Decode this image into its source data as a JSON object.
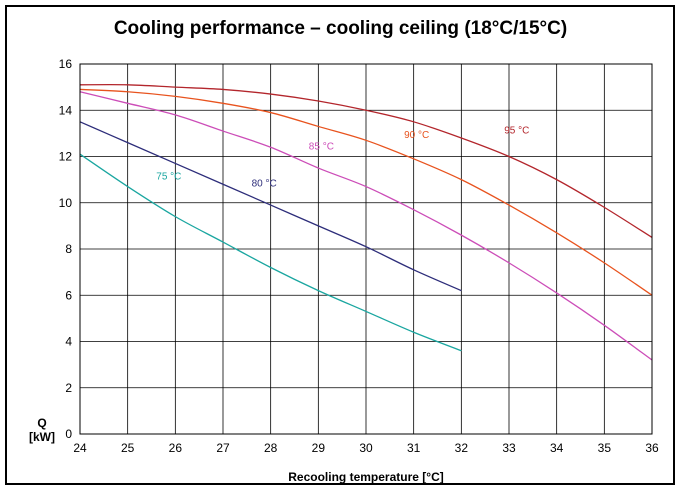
{
  "chart_data": {
    "type": "line",
    "title": "Cooling performance – cooling ceiling (18°C/15°C)",
    "xlabel": "Recooling temperature [°C]",
    "ylabel_top": "Q",
    "ylabel_bottom": "[kW]",
    "xlim": [
      24,
      36
    ],
    "ylim": [
      0,
      16
    ],
    "x_ticks": [
      "24",
      "25",
      "26",
      "27",
      "28",
      "29",
      "30",
      "31",
      "32",
      "33",
      "34",
      "35",
      "36"
    ],
    "y_ticks": [
      "0",
      "2",
      "4",
      "6",
      "8",
      "10",
      "12",
      "14",
      "16"
    ],
    "grid": true,
    "series": [
      {
        "name": "75 °C",
        "color": "#1aa6a0",
        "x": [
          24,
          25,
          26,
          27,
          28,
          29,
          30,
          31,
          32
        ],
        "y": [
          12.1,
          10.7,
          9.4,
          8.3,
          7.2,
          6.2,
          5.3,
          4.4,
          3.6
        ],
        "label_at": [
          25.6,
          11.0
        ]
      },
      {
        "name": "80 °C",
        "color": "#2d2d7a",
        "x": [
          24,
          25,
          26,
          27,
          28,
          29,
          30,
          31,
          32
        ],
        "y": [
          13.5,
          12.6,
          11.7,
          10.8,
          9.9,
          9.0,
          8.1,
          7.1,
          6.2
        ],
        "label_at": [
          27.6,
          10.7
        ]
      },
      {
        "name": "85 °C",
        "color": "#cc4db8",
        "x": [
          24,
          25,
          26,
          27,
          28,
          29,
          30,
          31,
          32,
          33,
          34,
          35,
          36
        ],
        "y": [
          14.8,
          14.3,
          13.8,
          13.1,
          12.4,
          11.5,
          10.7,
          9.7,
          8.6,
          7.4,
          6.1,
          4.7,
          3.2
        ],
        "label_at": [
          28.8,
          12.3
        ]
      },
      {
        "name": "90 °C",
        "color": "#e8531e",
        "x": [
          24,
          25,
          26,
          27,
          28,
          29,
          30,
          31,
          32,
          33,
          34,
          35,
          36
        ],
        "y": [
          14.9,
          14.8,
          14.6,
          14.3,
          13.9,
          13.3,
          12.7,
          11.9,
          11.0,
          9.9,
          8.7,
          7.4,
          6.0
        ],
        "label_at": [
          30.8,
          12.8
        ]
      },
      {
        "name": "95 °C",
        "color": "#b3262c",
        "x": [
          24,
          25,
          26,
          27,
          28,
          29,
          30,
          31,
          32,
          33,
          34,
          35,
          36
        ],
        "y": [
          15.1,
          15.1,
          15.0,
          14.9,
          14.7,
          14.4,
          14.0,
          13.5,
          12.8,
          12.0,
          11.0,
          9.8,
          8.5
        ],
        "label_at": [
          32.9,
          13.0
        ]
      }
    ]
  }
}
